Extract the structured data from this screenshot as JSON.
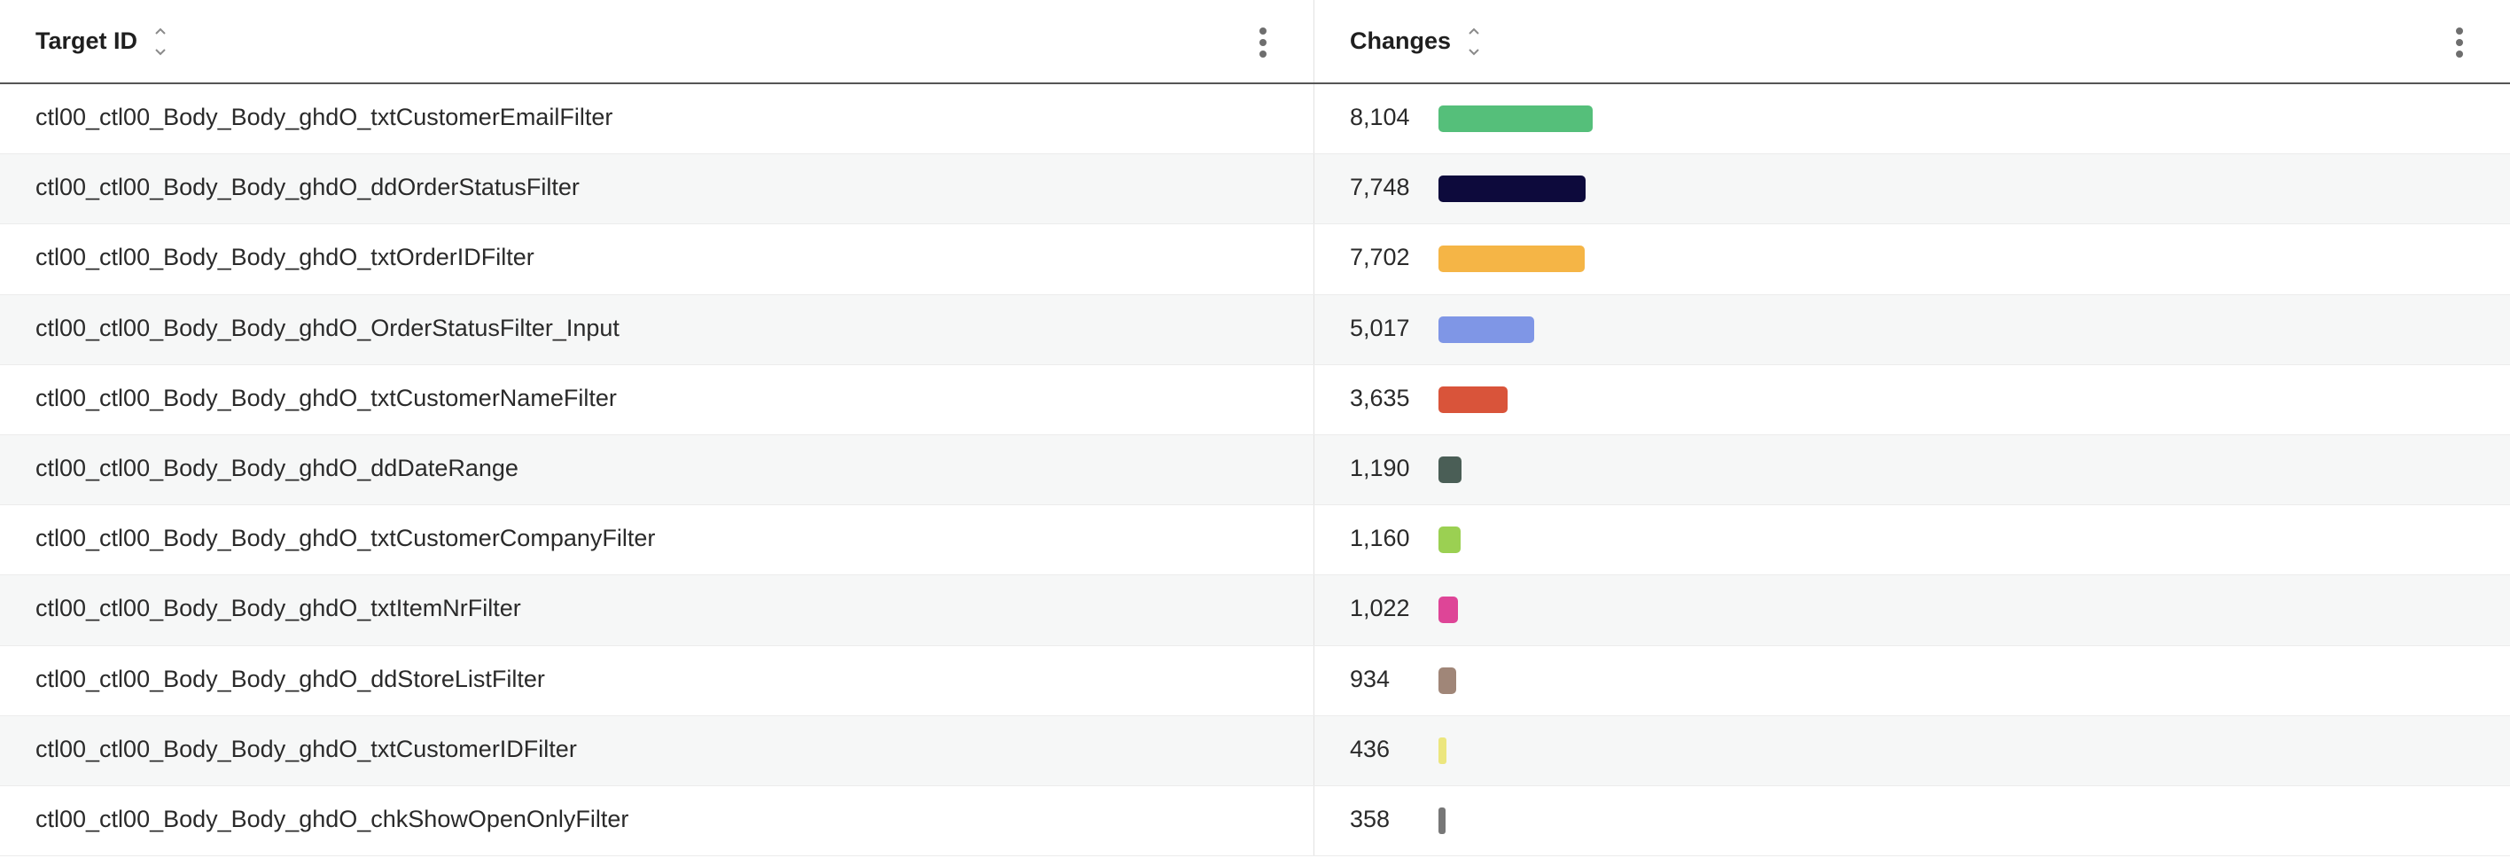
{
  "table": {
    "columns": [
      {
        "label": "Target ID",
        "sort_icon": "sort-icon",
        "menu_icon": "kebab-menu-icon"
      },
      {
        "label": "Changes",
        "sort_icon": "sort-icon",
        "menu_icon": "kebab-menu-icon"
      }
    ],
    "max_changes": 8104,
    "rows": [
      {
        "target_id": "ctl00_ctl00_Body_Body_ghdO_txtCustomerEmailFilter",
        "changes": "8,104",
        "value": 8104,
        "color": "#55bf7a"
      },
      {
        "target_id": "ctl00_ctl00_Body_Body_ghdO_ddOrderStatusFilter",
        "changes": "7,748",
        "value": 7748,
        "color": "#0d0a3c"
      },
      {
        "target_id": "ctl00_ctl00_Body_Body_ghdO_txtOrderIDFilter",
        "changes": "7,702",
        "value": 7702,
        "color": "#f5b546"
      },
      {
        "target_id": "ctl00_ctl00_Body_Body_ghdO_OrderStatusFilter_Input",
        "changes": "5,017",
        "value": 5017,
        "color": "#7f96e6"
      },
      {
        "target_id": "ctl00_ctl00_Body_Body_ghdO_txtCustomerNameFilter",
        "changes": "3,635",
        "value": 3635,
        "color": "#d9543a"
      },
      {
        "target_id": "ctl00_ctl00_Body_Body_ghdO_ddDateRange",
        "changes": "1,190",
        "value": 1190,
        "color": "#4a5e56"
      },
      {
        "target_id": "ctl00_ctl00_Body_Body_ghdO_txtCustomerCompanyFilter",
        "changes": "1,160",
        "value": 1160,
        "color": "#9bd052"
      },
      {
        "target_id": "ctl00_ctl00_Body_Body_ghdO_txtItemNrFilter",
        "changes": "1,022",
        "value": 1022,
        "color": "#de4597"
      },
      {
        "target_id": "ctl00_ctl00_Body_Body_ghdO_ddStoreListFilter",
        "changes": "934",
        "value": 934,
        "color": "#a08678"
      },
      {
        "target_id": "ctl00_ctl00_Body_Body_ghdO_txtCustomerIDFilter",
        "changes": "436",
        "value": 436,
        "color": "#ece67e"
      },
      {
        "target_id": "ctl00_ctl00_Body_Body_ghdO_chkShowOpenOnlyFilter",
        "changes": "358",
        "value": 358,
        "color": "#777777"
      }
    ]
  }
}
